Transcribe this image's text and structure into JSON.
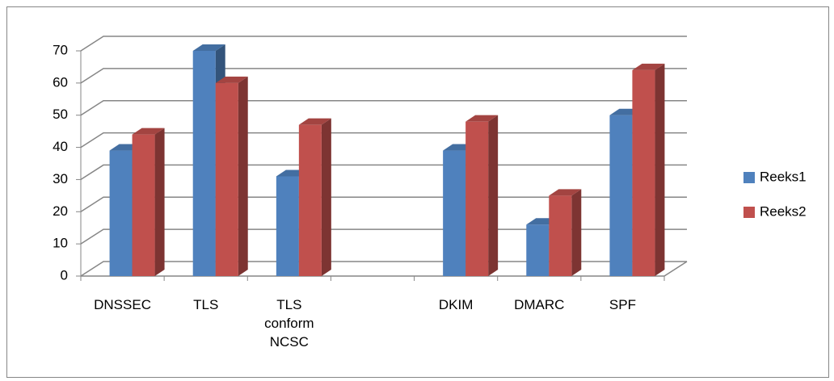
{
  "chart_data": {
    "type": "bar3d",
    "categories": [
      "DNSSEC",
      "TLS",
      "TLS conform NCSC",
      null,
      "DKIM",
      "DMARC",
      "SPF"
    ],
    "series": [
      {
        "name": "Reeks1",
        "color": "#4f81bd",
        "values": [
          39,
          70,
          31,
          null,
          39,
          16,
          50
        ]
      },
      {
        "name": "Reeks2",
        "color": "#c0504d",
        "values": [
          44,
          60,
          47,
          null,
          48,
          25,
          64
        ]
      }
    ],
    "ylim": [
      0,
      70
    ],
    "yticks": [
      0,
      10,
      20,
      30,
      40,
      50,
      60,
      70
    ],
    "grid": true,
    "legend": "right"
  }
}
